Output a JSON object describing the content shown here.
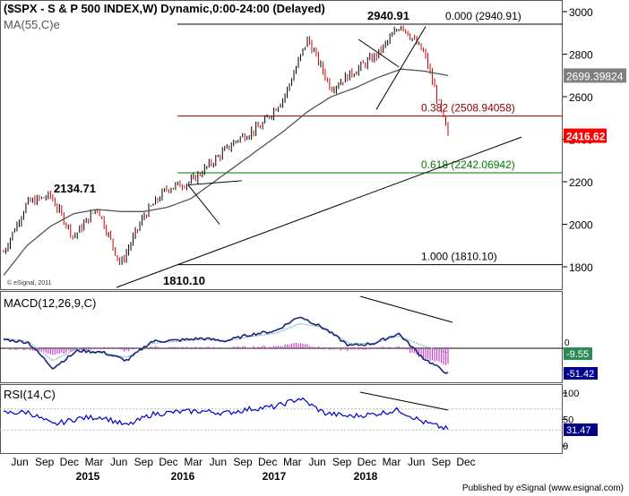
{
  "header": {
    "title": "($SPX - S & P 500 INDEX,W) Dynamic,0:00-24:00 (Delayed)",
    "ma_label": "MA(55,C)e"
  },
  "publisher": "Published by eSignal (www.esignal.com)",
  "watermark": "© eSignal, 2011",
  "chart_data": [
    {
      "type": "line",
      "panel": "price",
      "title": "($SPX - S & P 500 INDEX,W) Dynamic,0:00-24:00 (Delayed)",
      "ylim": [
        1700,
        3060
      ],
      "yticks": [
        1800,
        2000,
        2200,
        2400,
        2600,
        2800,
        3000
      ],
      "ytick_labels": [
        "1800",
        "2000",
        "2200",
        "2400",
        "2600",
        "2800",
        "3000"
      ],
      "grid": false,
      "x": [
        "2015-03",
        "2015-06",
        "2015-08",
        "2015-11",
        "2016-02",
        "2016-05",
        "2016-08",
        "2016-11",
        "2017-02",
        "2017-05",
        "2017-08",
        "2017-11",
        "2018-01",
        "2018-02",
        "2018-04",
        "2018-06",
        "2018-08",
        "2018-09",
        "2018-10",
        "2018-11"
      ],
      "series": [
        {
          "name": "$SPX",
          "values": [
            1870,
            2100,
            2134.71,
            1940,
            2080,
            1810.1,
            2040,
            2170,
            2200,
            2300,
            2400,
            2460,
            2600,
            2872,
            2640,
            2720,
            2800,
            2940.91,
            2800,
            2416.62
          ]
        },
        {
          "name": "MA(55,C)e",
          "values": [
            1760,
            1900,
            1990,
            2050,
            2070,
            2060,
            2060,
            2080,
            2120,
            2200,
            2280,
            2360,
            2440,
            2530,
            2600,
            2640,
            2690,
            2730,
            2720,
            2699.4
          ]
        }
      ],
      "price_high_label": "2940.91",
      "price_peak_2015_label": "2134.71",
      "price_low_label": "1810.10",
      "fib_levels": [
        {
          "ratio": "0.000",
          "value": 2940.91,
          "label": "0.000 (2940.91)",
          "color": "#000000"
        },
        {
          "ratio": "0.382",
          "value": 2508.94058,
          "label": "0.382 (2508.94058)",
          "color": "#8b0000"
        },
        {
          "ratio": "0.618",
          "value": 2242.06942,
          "label": "0.618 (2242.06942)",
          "color": "#007a00"
        },
        {
          "ratio": "1.000",
          "value": 1810.1,
          "label": "1.000 (1810.10)",
          "color": "#000000"
        }
      ],
      "current_price_label": "2416.62",
      "ma_value_label": "2699.39824"
    },
    {
      "type": "line",
      "panel": "macd",
      "title": "MACD(12,26,9,C)",
      "yticks": [
        0
      ],
      "ytick_labels": [
        "0"
      ],
      "series": [
        {
          "name": "MACD",
          "values": [
            18,
            12,
            -40,
            -5,
            -8,
            -25,
            14,
            16,
            20,
            15,
            28,
            35,
            65,
            40,
            5,
            10,
            30,
            -20,
            -51.42
          ]
        },
        {
          "name": "Signal",
          "values": [
            20,
            14,
            -25,
            0,
            -10,
            -18,
            10,
            14,
            18,
            14,
            24,
            30,
            50,
            42,
            10,
            10,
            25,
            5,
            -9.55
          ]
        }
      ],
      "value_labels": [
        "-9.55",
        "-51.42"
      ]
    },
    {
      "type": "line",
      "panel": "rsi",
      "title": "RSI(14,C)",
      "yticks": [
        100,
        50,
        0
      ],
      "ytick_labels": [
        "100",
        "50",
        "0"
      ],
      "series": [
        {
          "name": "RSI",
          "values": [
            62,
            64,
            40,
            52,
            55,
            38,
            60,
            64,
            66,
            62,
            70,
            74,
            90,
            62,
            56,
            60,
            68,
            45,
            31.47
          ]
        }
      ],
      "value_labels": [
        "31.47"
      ]
    }
  ],
  "x_axis": {
    "month_labels": [
      "Jun",
      "Sep",
      "Dec",
      "Mar",
      "Jun",
      "Sep",
      "Dec",
      "Mar",
      "Jun",
      "Sep",
      "Dec",
      "Mar",
      "Jun",
      "Sep",
      "Dec",
      "Mar",
      "Jun",
      "Sep",
      "Dec"
    ],
    "year_labels": [
      "2015",
      "2016",
      "2017",
      "2018"
    ]
  },
  "colors": {
    "price_up": "#000000",
    "price_down": "#cc0000",
    "ma": "#555555",
    "fib_382": "#8b0000",
    "fib_618": "#007a00",
    "macd_line": "#1a237e",
    "macd_signal": "#5fb3b3",
    "macd_hist": "#cc44cc",
    "rsi_line": "#0000cc",
    "current_price_bg": "#ff0000",
    "ma_value_bg": "#808080",
    "macd_signal_bg": "#2e8b57",
    "macd_value_bg": "#00008b",
    "rsi_value_bg": "#00008b"
  }
}
